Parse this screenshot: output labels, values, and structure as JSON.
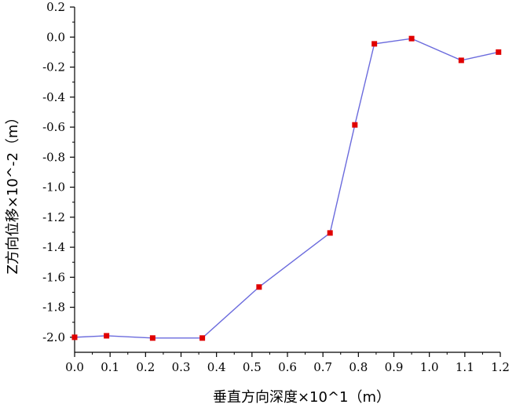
{
  "chart_data": {
    "type": "line",
    "xlabel": "垂直方向深度×10^1（m）",
    "ylabel": "Z方向位移×10^-2（m）",
    "xlim": [
      0.0,
      1.2
    ],
    "ylim": [
      -2.1,
      0.2
    ],
    "xticks": [
      0.0,
      0.1,
      0.2,
      0.3,
      0.4,
      0.5,
      0.6,
      0.7,
      0.8,
      0.9,
      1.0,
      1.1,
      1.2
    ],
    "xtick_labels": [
      "0.0",
      "0.1",
      "0.2",
      "0.3",
      "0.4",
      "0.5",
      "0.6",
      "0.7",
      "0.8",
      "0.9",
      "1.0",
      "1.1",
      "1.2"
    ],
    "yticks": [
      0.2,
      0.0,
      -0.2,
      -0.4,
      -0.6,
      -0.8,
      -1.0,
      -1.2,
      -1.4,
      -1.6,
      -1.8,
      -2.0
    ],
    "ytick_labels": [
      "0.2",
      "0.0",
      "-0.2",
      "-0.4",
      "-0.6",
      "-0.8",
      "-1.0",
      "-1.2",
      "-1.4",
      "-1.6",
      "-1.8",
      "-2.0"
    ],
    "grid": false,
    "line_color": "#6b6bdd",
    "marker_color": "#e00000",
    "series": [
      {
        "x": [
          0.0,
          0.09,
          0.22,
          0.36,
          0.52,
          0.72,
          0.79,
          0.845,
          0.95,
          1.09,
          1.195
        ],
        "y": [
          -2.0,
          -1.99,
          -2.005,
          -2.005,
          -1.665,
          -1.305,
          -0.585,
          -0.045,
          -0.01,
          -0.155,
          -0.1
        ]
      }
    ]
  }
}
